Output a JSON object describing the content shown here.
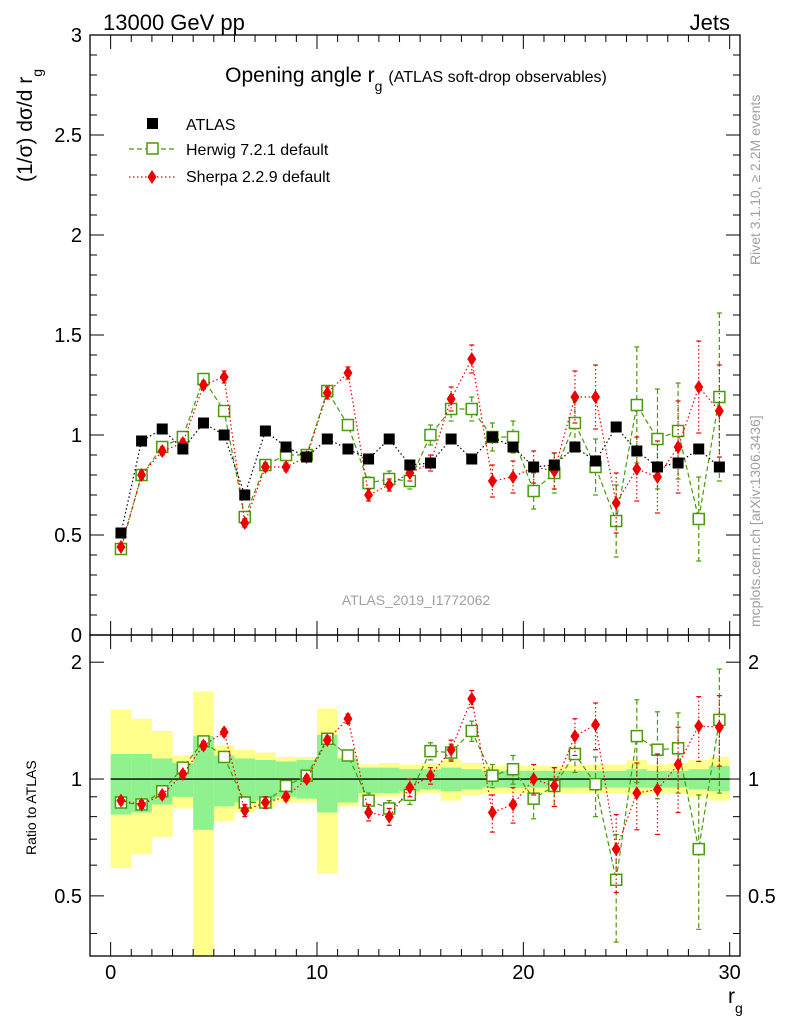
{
  "header": {
    "left": "13000 GeV pp",
    "right": "Jets"
  },
  "side_labels": {
    "rivet": "Rivet 3.1.10, ≥ 2.2M events",
    "mcplots": "mcplots.cern.ch [arXiv:1306.3436]"
  },
  "chart_data": [
    {
      "type": "scatter",
      "panel": "main",
      "title": "Opening angle r",
      "title_subscript": "g",
      "title_suffix": "(ATLAS soft-drop observables)",
      "ylabel": "(1/σ) dσ/d r",
      "ylabel_subscript": "g",
      "xlim": [
        -1,
        30.5
      ],
      "ylim": [
        0,
        3
      ],
      "yticks": [
        {
          "v": 0,
          "label": "0"
        },
        {
          "v": 0.5,
          "label": "0.5"
        },
        {
          "v": 1,
          "label": "1"
        },
        {
          "v": 1.5,
          "label": "1.5"
        },
        {
          "v": 2,
          "label": "2"
        },
        {
          "v": 2.5,
          "label": "2.5"
        },
        {
          "v": 3,
          "label": "3"
        }
      ],
      "watermark": "ATLAS_2019_I1772062",
      "legend_position": "top-left",
      "x": [
        0.5,
        1.5,
        2.5,
        3.5,
        4.5,
        5.5,
        6.5,
        7.5,
        8.5,
        9.5,
        10.5,
        11.5,
        12.5,
        13.5,
        14.5,
        15.5,
        16.5,
        17.5,
        18.5,
        19.5,
        20.5,
        21.5,
        22.5,
        23.5,
        24.5,
        25.5,
        26.5,
        27.5,
        28.5,
        29.5
      ],
      "series": [
        {
          "name": "ATLAS",
          "style": "data",
          "color": "#000000",
          "values": [
            0.51,
            0.97,
            1.03,
            0.93,
            1.06,
            1.0,
            0.7,
            1.02,
            0.94,
            0.89,
            0.98,
            0.93,
            0.88,
            0.98,
            0.85,
            0.86,
            0.98,
            0.88,
            0.99,
            0.94,
            0.84,
            0.85,
            0.94,
            0.87,
            1.04,
            0.92,
            0.84,
            0.86,
            0.93,
            0.84
          ]
        },
        {
          "name": "Herwig 7.2.1 default",
          "style": "open-square-dashed",
          "color": "#4a9a0a",
          "values": [
            0.43,
            0.8,
            0.94,
            0.99,
            1.28,
            1.12,
            0.59,
            0.85,
            0.9,
            0.9,
            1.22,
            1.05,
            0.76,
            0.78,
            0.77,
            1.0,
            1.13,
            1.13,
            0.99,
            0.99,
            0.72,
            0.81,
            1.06,
            0.84,
            0.57,
            1.15,
            0.98,
            1.02,
            0.58,
            1.19
          ],
          "errors": [
            0.01,
            0.02,
            0.02,
            0.02,
            0.02,
            0.02,
            0.02,
            0.02,
            0.02,
            0.02,
            0.02,
            0.02,
            0.03,
            0.04,
            0.04,
            0.05,
            0.06,
            0.06,
            0.07,
            0.08,
            0.09,
            0.1,
            0.11,
            0.14,
            0.18,
            0.29,
            0.25,
            0.24,
            0.21,
            0.42
          ]
        },
        {
          "name": "Sherpa 2.2.9 default",
          "style": "red-diamond-dotted",
          "color": "#ee0000",
          "values": [
            0.44,
            0.8,
            0.92,
            0.96,
            1.25,
            1.29,
            0.56,
            0.84,
            0.84,
            0.89,
            1.21,
            1.31,
            0.7,
            0.75,
            0.81,
            0.86,
            1.18,
            1.38,
            0.77,
            0.79,
            0.84,
            0.82,
            1.19,
            1.19,
            0.66,
            0.83,
            0.79,
            0.94,
            1.24,
            1.12
          ],
          "errors": [
            0.01,
            0.02,
            0.02,
            0.02,
            0.02,
            0.03,
            0.02,
            0.02,
            0.02,
            0.02,
            0.03,
            0.03,
            0.03,
            0.03,
            0.04,
            0.04,
            0.06,
            0.07,
            0.08,
            0.08,
            0.08,
            0.09,
            0.13,
            0.16,
            0.15,
            0.16,
            0.18,
            0.23,
            0.23,
            0.23
          ]
        }
      ]
    },
    {
      "type": "scatter",
      "panel": "ratio",
      "ylabel": "Ratio to ATLAS",
      "xlabel": "r",
      "xlabel_subscript": "g",
      "xlim": [
        -1,
        30.5
      ],
      "ylim": [
        0.35,
        2.35
      ],
      "log_y": true,
      "xticks": [
        {
          "v": 0,
          "label": "0"
        },
        {
          "v": 10,
          "label": "10"
        },
        {
          "v": 20,
          "label": "20"
        },
        {
          "v": 30,
          "label": "30"
        }
      ],
      "yticks": [
        {
          "v": 0.5,
          "label": "0.5"
        },
        {
          "v": 1,
          "label": "1"
        },
        {
          "v": 2,
          "label": "2"
        }
      ],
      "reference_line": 1,
      "bands": {
        "stat_color": "#8ff28f",
        "total_color": "#ffff8c",
        "bins": [
          {
            "x0": 0,
            "x1": 1,
            "stat": [
              0.81,
              1.16
            ],
            "tot": [
              0.59,
              1.51
            ]
          },
          {
            "x0": 1,
            "x1": 2,
            "stat": [
              0.82,
              1.16
            ],
            "tot": [
              0.64,
              1.43
            ]
          },
          {
            "x0": 2,
            "x1": 3,
            "stat": [
              0.86,
              1.13
            ],
            "tot": [
              0.71,
              1.33
            ]
          },
          {
            "x0": 3,
            "x1": 4,
            "stat": [
              0.9,
              1.1
            ],
            "tot": [
              0.84,
              1.15
            ]
          },
          {
            "x0": 4,
            "x1": 5,
            "stat": [
              0.74,
              1.29
            ],
            "tot": [
              0.35,
              1.68
            ]
          },
          {
            "x0": 5,
            "x1": 6,
            "stat": [
              0.85,
              1.15
            ],
            "tot": [
              0.78,
              1.22
            ]
          },
          {
            "x0": 6,
            "x1": 7,
            "stat": [
              0.87,
              1.13
            ],
            "tot": [
              0.82,
              1.19
            ]
          },
          {
            "x0": 7,
            "x1": 8,
            "stat": [
              0.88,
              1.12
            ],
            "tot": [
              0.84,
              1.17
            ]
          },
          {
            "x0": 8,
            "x1": 9,
            "stat": [
              0.9,
              1.11
            ],
            "tot": [
              0.87,
              1.14
            ]
          },
          {
            "x0": 9,
            "x1": 10,
            "stat": [
              0.89,
              1.12
            ],
            "tot": [
              0.87,
              1.14
            ]
          },
          {
            "x0": 10,
            "x1": 11,
            "stat": [
              0.82,
              1.3
            ],
            "tot": [
              0.57,
              1.52
            ]
          },
          {
            "x0": 11,
            "x1": 12,
            "stat": [
              0.87,
              1.13
            ],
            "tot": [
              0.85,
              1.15
            ]
          },
          {
            "x0": 12,
            "x1": 13,
            "stat": [
              0.92,
              1.07
            ],
            "tot": [
              0.9,
              1.09
            ]
          },
          {
            "x0": 13,
            "x1": 14,
            "stat": [
              0.92,
              1.07
            ],
            "tot": [
              0.9,
              1.1
            ]
          },
          {
            "x0": 14,
            "x1": 15,
            "stat": [
              0.93,
              1.06
            ],
            "tot": [
              0.91,
              1.09
            ]
          },
          {
            "x0": 15,
            "x1": 16,
            "stat": [
              0.94,
              1.06
            ],
            "tot": [
              0.92,
              1.1
            ]
          },
          {
            "x0": 16,
            "x1": 17,
            "stat": [
              0.93,
              1.07
            ],
            "tot": [
              0.88,
              1.12
            ]
          },
          {
            "x0": 17,
            "x1": 18,
            "stat": [
              0.94,
              1.06
            ],
            "tot": [
              0.91,
              1.1
            ]
          },
          {
            "x0": 18,
            "x1": 19,
            "stat": [
              0.95,
              1.05
            ],
            "tot": [
              0.92,
              1.08
            ]
          },
          {
            "x0": 19,
            "x1": 20,
            "stat": [
              0.95,
              1.05
            ],
            "tot": [
              0.92,
              1.08
            ]
          },
          {
            "x0": 20,
            "x1": 21,
            "stat": [
              0.95,
              1.05
            ],
            "tot": [
              0.92,
              1.08
            ]
          },
          {
            "x0": 21,
            "x1": 22,
            "stat": [
              0.95,
              1.05
            ],
            "tot": [
              0.92,
              1.08
            ]
          },
          {
            "x0": 22,
            "x1": 23,
            "stat": [
              0.95,
              1.05
            ],
            "tot": [
              0.92,
              1.09
            ]
          },
          {
            "x0": 23,
            "x1": 24,
            "stat": [
              0.95,
              1.05
            ],
            "tot": [
              0.92,
              1.09
            ]
          },
          {
            "x0": 24,
            "x1": 25,
            "stat": [
              0.95,
              1.05
            ],
            "tot": [
              0.92,
              1.09
            ]
          },
          {
            "x0": 25,
            "x1": 26,
            "stat": [
              0.95,
              1.06
            ],
            "tot": [
              0.91,
              1.12
            ]
          },
          {
            "x0": 26,
            "x1": 27,
            "stat": [
              0.95,
              1.05
            ],
            "tot": [
              0.92,
              1.09
            ]
          },
          {
            "x0": 27,
            "x1": 28,
            "stat": [
              0.95,
              1.05
            ],
            "tot": [
              0.92,
              1.1
            ]
          },
          {
            "x0": 28,
            "x1": 29,
            "stat": [
              0.94,
              1.06
            ],
            "tot": [
              0.9,
              1.12
            ]
          },
          {
            "x0": 29,
            "x1": 30,
            "stat": [
              0.93,
              1.08
            ],
            "tot": [
              0.88,
              1.14
            ]
          }
        ]
      },
      "x": [
        0.5,
        1.5,
        2.5,
        3.5,
        4.5,
        5.5,
        6.5,
        7.5,
        8.5,
        9.5,
        10.5,
        11.5,
        12.5,
        13.5,
        14.5,
        15.5,
        16.5,
        17.5,
        18.5,
        19.5,
        20.5,
        21.5,
        22.5,
        23.5,
        24.5,
        25.5,
        26.5,
        27.5,
        28.5,
        29.5
      ],
      "series": [
        {
          "name": "Herwig 7.2.1 default",
          "style": "open-square-dashed",
          "color": "#4a9a0a",
          "values": [
            0.87,
            0.86,
            0.93,
            1.07,
            1.25,
            1.14,
            0.87,
            0.87,
            0.96,
            1.02,
            1.27,
            1.15,
            0.88,
            0.84,
            0.91,
            1.18,
            1.17,
            1.33,
            1.02,
            1.06,
            0.89,
            0.96,
            1.16,
            0.97,
            0.55,
            1.29,
            1.19,
            1.2,
            0.66,
            1.42
          ],
          "errors": [
            0.02,
            0.02,
            0.02,
            0.02,
            0.02,
            0.02,
            0.03,
            0.02,
            0.02,
            0.02,
            0.02,
            0.02,
            0.04,
            0.04,
            0.05,
            0.06,
            0.06,
            0.08,
            0.07,
            0.09,
            0.1,
            0.11,
            0.12,
            0.17,
            0.17,
            0.31,
            0.3,
            0.28,
            0.25,
            0.5
          ]
        },
        {
          "name": "Sherpa 2.2.9 default",
          "style": "red-diamond-dotted",
          "color": "#ee0000",
          "values": [
            0.88,
            0.86,
            0.91,
            1.03,
            1.22,
            1.32,
            0.83,
            0.87,
            0.9,
            1.0,
            1.26,
            1.43,
            0.82,
            0.8,
            0.95,
            1.02,
            1.19,
            1.61,
            0.82,
            0.86,
            1.0,
            0.96,
            1.29,
            1.38,
            0.66,
            0.92,
            0.94,
            1.09,
            1.37,
            1.36
          ],
          "errors": [
            0.02,
            0.02,
            0.02,
            0.02,
            0.03,
            0.03,
            0.03,
            0.03,
            0.02,
            0.02,
            0.03,
            0.04,
            0.04,
            0.04,
            0.05,
            0.05,
            0.07,
            0.08,
            0.09,
            0.09,
            0.09,
            0.11,
            0.14,
            0.19,
            0.15,
            0.18,
            0.22,
            0.27,
            0.26,
            0.28
          ]
        }
      ]
    }
  ]
}
